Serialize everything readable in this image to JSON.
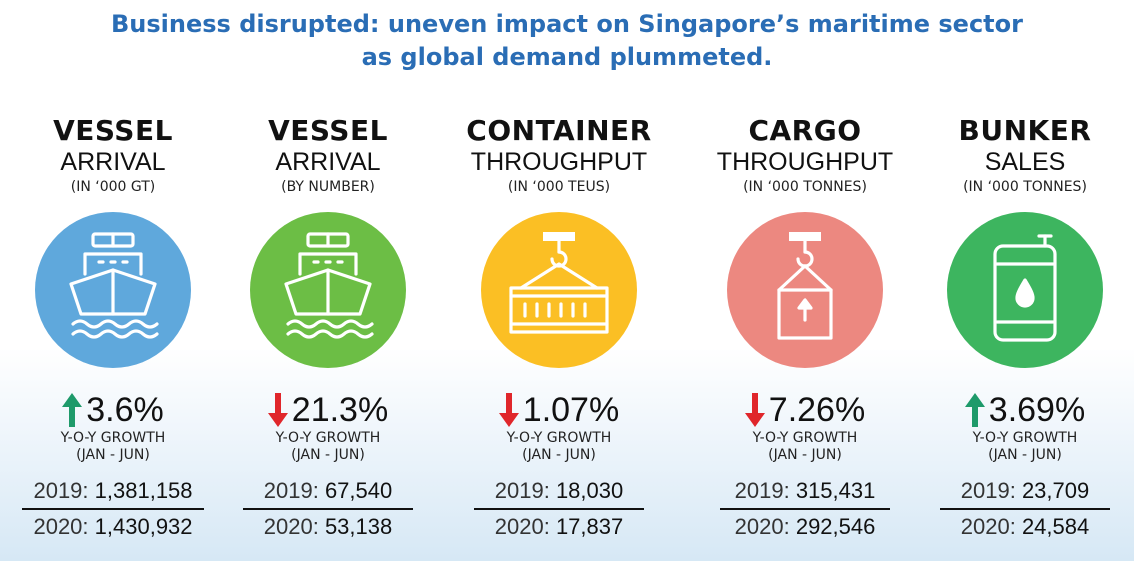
{
  "title": {
    "line1": "Business disrupted: uneven impact on Singapore’s maritime sector",
    "line2": "as global demand plummeted."
  },
  "metrics": [
    {
      "name_bold": "VESSEL",
      "name_light": "ARRIVAL",
      "unit": "(IN ‘000 GT)",
      "icon": "ship-icon",
      "color": "#5fa8dc",
      "direction": "up",
      "growth": "3.6%",
      "growth_label": "Y-O-Y GROWTH",
      "period": "(JAN - JUN)",
      "year1_label": "2019:",
      "year1_value": "1,381,158",
      "year2_label": "2020:",
      "year2_value": "1,430,932"
    },
    {
      "name_bold": "VESSEL",
      "name_light": "ARRIVAL",
      "unit": "(BY NUMBER)",
      "icon": "ship-icon",
      "color": "#6cbe45",
      "direction": "down",
      "growth": "21.3%",
      "growth_label": "Y-O-Y GROWTH",
      "period": "(JAN - JUN)",
      "year1_label": "2019:",
      "year1_value": "67,540",
      "year2_label": "2020:",
      "year2_value": "53,138"
    },
    {
      "name_bold": "CONTAINER",
      "name_light": "THROUGHPUT",
      "unit": "(IN ‘000 TEUS)",
      "icon": "container-crane-icon",
      "color": "#fbbf24",
      "direction": "down",
      "growth": "1.07%",
      "growth_label": "Y-O-Y GROWTH",
      "period": "(JAN - JUN)",
      "year1_label": "2019:",
      "year1_value": "18,030",
      "year2_label": "2020:",
      "year2_value": "17,837"
    },
    {
      "name_bold": "CARGO",
      "name_light": "THROUGHPUT",
      "unit": "(IN ‘000 TONNES)",
      "icon": "cargo-crane-icon",
      "color": "#ec8880",
      "direction": "down",
      "growth": "7.26%",
      "growth_label": "Y-O-Y GROWTH",
      "period": "(JAN - JUN)",
      "year1_label": "2019:",
      "year1_value": "315,431",
      "year2_label": "2020:",
      "year2_value": "292,546"
    },
    {
      "name_bold": "BUNKER",
      "name_light": "SALES",
      "unit": "(IN ‘000 TONNES)",
      "icon": "oil-barrel-icon",
      "color": "#3db55f",
      "direction": "up",
      "growth": "3.69%",
      "growth_label": "Y-O-Y GROWTH",
      "period": "(JAN - JUN)",
      "year1_label": "2019:",
      "year1_value": "23,709",
      "year2_label": "2020:",
      "year2_value": "24,584"
    }
  ],
  "colors": {
    "title": "#2a6db5",
    "up_arrow": "#1e9a6a",
    "down_arrow": "#e0262b"
  }
}
